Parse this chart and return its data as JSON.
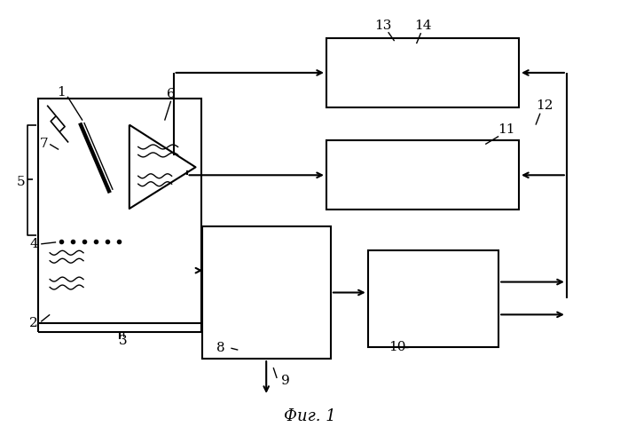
{
  "fig_width": 6.99,
  "fig_height": 4.9,
  "dpi": 100,
  "bg_color": "#ffffff",
  "lc": "#000000",
  "caption": "Фиг. 1",
  "caption_fontsize": 13,
  "label_fontsize": 11
}
